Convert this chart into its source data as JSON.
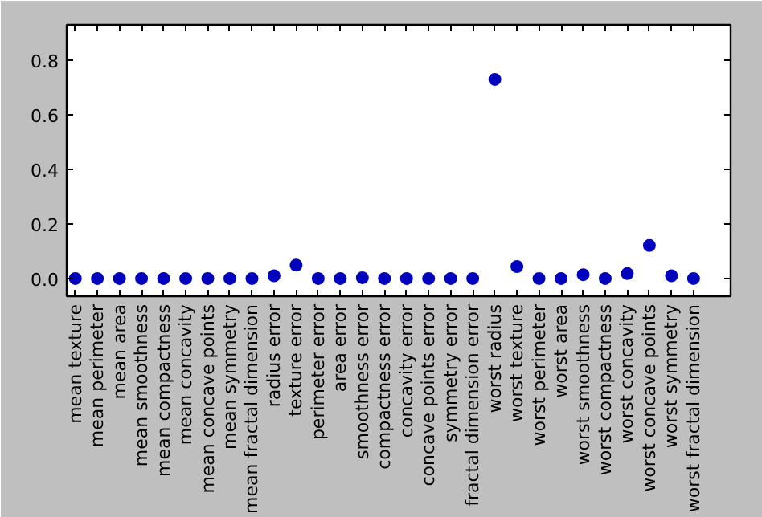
{
  "chart_data": {
    "type": "scatter",
    "categories": [
      "mean texture",
      "mean perimeter",
      "mean area",
      "mean smoothness",
      "mean compactness",
      "mean concavity",
      "mean concave points",
      "mean symmetry",
      "mean fractal dimension",
      "radius error",
      "texture error",
      "perimeter error",
      "area error",
      "smoothness error",
      "compactness error",
      "concavity error",
      "concave points error",
      "symmetry error",
      "fractal dimension error",
      "worst radius",
      "worst texture",
      "worst perimeter",
      "worst area",
      "worst smoothness",
      "worst compactness",
      "worst concavity",
      "worst concave points",
      "worst symmetry",
      "worst fractal dimension"
    ],
    "values": [
      0,
      0,
      0,
      0,
      0,
      0,
      0,
      0,
      0,
      0.01,
      0.049,
      0,
      0,
      0.003,
      0,
      0,
      0,
      0,
      0,
      0.73,
      0.044,
      0,
      0,
      0.014,
      0,
      0.018,
      0.121,
      0.01,
      0
    ],
    "color": "#0000bf",
    "marker": "circle",
    "grid": false,
    "ylim": [
      -0.065,
      0.93
    ],
    "yticks": [
      {
        "value": 0,
        "label": "0.0"
      },
      0.2,
      0.4,
      0.6,
      0.8
    ]
  }
}
